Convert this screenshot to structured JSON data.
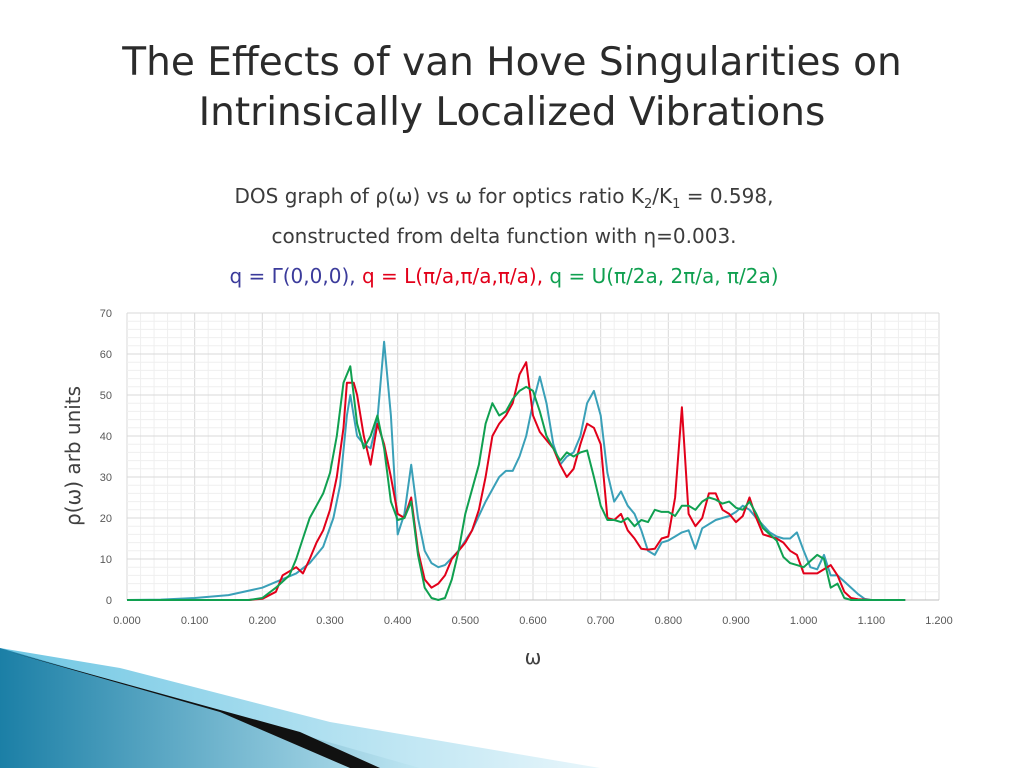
{
  "slide": {
    "title_line1": "The Effects of van Hove Singularities on",
    "title_line2": "Intrinsically Localized Vibrations",
    "sub1_a": "DOS graph of ρ(ω) vs ω for optics ratio K",
    "sub1_s1": "2",
    "sub1_b": "/K",
    "sub1_s2": "1",
    "sub1_c": " = 0.598,",
    "sub2": "constructed from delta function with η=0.003.",
    "q_gamma": "q = Γ(0,0,0),",
    "q_L": "q = L(π/a,π/a,π/a),",
    "q_U": "q = U(π/2a, 2π/a, π/2a)"
  },
  "colors": {
    "gamma": "#3b3b9b",
    "L": "#e2001a",
    "U": "#10a050",
    "teal": "#3aa0b8",
    "grid": "#e6e6e6",
    "axis_text": "#595959"
  },
  "chart_data": {
    "type": "line",
    "xlabel": "ω",
    "ylabel": "ρ(ω) arb units",
    "xlim": [
      0,
      1.2
    ],
    "ylim": [
      0,
      70
    ],
    "x_ticks": [
      "0.000",
      "0.100",
      "0.200",
      "0.300",
      "0.400",
      "0.500",
      "0.600",
      "0.700",
      "0.800",
      "0.900",
      "1.000",
      "1.100",
      "1.200"
    ],
    "y_ticks": [
      "0",
      "10",
      "20",
      "30",
      "40",
      "50",
      "60",
      "70"
    ],
    "grid": true,
    "legend": "none",
    "series": [
      {
        "color": "#3aa0b8",
        "points": [
          [
            0,
            0
          ],
          [
            0.05,
            0.1
          ],
          [
            0.1,
            0.5
          ],
          [
            0.15,
            1.2
          ],
          [
            0.2,
            3
          ],
          [
            0.25,
            6.5
          ],
          [
            0.27,
            9
          ],
          [
            0.29,
            13
          ],
          [
            0.305,
            20
          ],
          [
            0.315,
            28
          ],
          [
            0.325,
            45
          ],
          [
            0.33,
            50
          ],
          [
            0.34,
            40
          ],
          [
            0.35,
            38
          ],
          [
            0.36,
            37
          ],
          [
            0.37,
            44
          ],
          [
            0.38,
            63
          ],
          [
            0.39,
            45
          ],
          [
            0.4,
            16
          ],
          [
            0.41,
            21
          ],
          [
            0.42,
            33
          ],
          [
            0.43,
            20
          ],
          [
            0.44,
            12
          ],
          [
            0.45,
            9
          ],
          [
            0.46,
            8
          ],
          [
            0.47,
            8.5
          ],
          [
            0.49,
            12
          ],
          [
            0.51,
            17
          ],
          [
            0.53,
            24
          ],
          [
            0.55,
            30
          ],
          [
            0.56,
            31.5
          ],
          [
            0.57,
            31.5
          ],
          [
            0.58,
            35
          ],
          [
            0.59,
            40
          ],
          [
            0.6,
            48
          ],
          [
            0.61,
            54.5
          ],
          [
            0.62,
            48
          ],
          [
            0.63,
            38
          ],
          [
            0.64,
            33
          ],
          [
            0.65,
            35
          ],
          [
            0.66,
            36
          ],
          [
            0.67,
            40
          ],
          [
            0.68,
            48
          ],
          [
            0.69,
            51
          ],
          [
            0.7,
            45
          ],
          [
            0.71,
            31
          ],
          [
            0.72,
            24
          ],
          [
            0.73,
            26.5
          ],
          [
            0.74,
            23
          ],
          [
            0.75,
            21
          ],
          [
            0.76,
            17
          ],
          [
            0.77,
            12
          ],
          [
            0.78,
            11
          ],
          [
            0.79,
            14
          ],
          [
            0.8,
            14.5
          ],
          [
            0.81,
            15.5
          ],
          [
            0.82,
            16.5
          ],
          [
            0.83,
            17
          ],
          [
            0.84,
            12.5
          ],
          [
            0.85,
            17.5
          ],
          [
            0.87,
            19.5
          ],
          [
            0.89,
            20.5
          ],
          [
            0.9,
            21.5
          ],
          [
            0.91,
            23
          ],
          [
            0.92,
            22
          ],
          [
            0.93,
            20
          ],
          [
            0.95,
            16.5
          ],
          [
            0.96,
            15.5
          ],
          [
            0.97,
            15
          ],
          [
            0.98,
            15
          ],
          [
            0.99,
            16.5
          ],
          [
            1.0,
            12
          ],
          [
            1.01,
            8
          ],
          [
            1.02,
            7.5
          ],
          [
            1.03,
            11
          ],
          [
            1.04,
            6
          ],
          [
            1.05,
            6
          ],
          [
            1.06,
            4.5
          ],
          [
            1.08,
            1.5
          ],
          [
            1.09,
            0.3
          ],
          [
            1.1,
            0
          ],
          [
            1.15,
            0
          ]
        ]
      },
      {
        "color": "#e2001a",
        "points": [
          [
            0,
            0
          ],
          [
            0.18,
            0
          ],
          [
            0.2,
            0.3
          ],
          [
            0.22,
            2
          ],
          [
            0.23,
            6
          ],
          [
            0.24,
            7
          ],
          [
            0.25,
            8
          ],
          [
            0.26,
            6.5
          ],
          [
            0.27,
            10
          ],
          [
            0.28,
            14
          ],
          [
            0.29,
            17
          ],
          [
            0.3,
            22
          ],
          [
            0.31,
            30
          ],
          [
            0.32,
            42
          ],
          [
            0.325,
            53
          ],
          [
            0.33,
            53
          ],
          [
            0.335,
            53
          ],
          [
            0.34,
            50
          ],
          [
            0.35,
            40
          ],
          [
            0.36,
            33
          ],
          [
            0.37,
            43
          ],
          [
            0.38,
            38
          ],
          [
            0.39,
            30
          ],
          [
            0.4,
            21
          ],
          [
            0.41,
            20
          ],
          [
            0.42,
            25
          ],
          [
            0.43,
            12
          ],
          [
            0.44,
            5
          ],
          [
            0.45,
            3
          ],
          [
            0.46,
            4
          ],
          [
            0.47,
            6
          ],
          [
            0.48,
            10
          ],
          [
            0.49,
            12
          ],
          [
            0.5,
            14
          ],
          [
            0.51,
            17
          ],
          [
            0.52,
            22
          ],
          [
            0.53,
            30
          ],
          [
            0.54,
            40
          ],
          [
            0.55,
            43
          ],
          [
            0.56,
            45
          ],
          [
            0.57,
            48
          ],
          [
            0.58,
            55
          ],
          [
            0.59,
            58
          ],
          [
            0.6,
            45
          ],
          [
            0.61,
            41
          ],
          [
            0.62,
            39
          ],
          [
            0.63,
            37
          ],
          [
            0.64,
            33
          ],
          [
            0.65,
            30
          ],
          [
            0.66,
            32
          ],
          [
            0.67,
            38
          ],
          [
            0.68,
            43
          ],
          [
            0.69,
            42
          ],
          [
            0.7,
            38
          ],
          [
            0.71,
            20
          ],
          [
            0.72,
            19.5
          ],
          [
            0.73,
            21
          ],
          [
            0.74,
            17
          ],
          [
            0.75,
            15
          ],
          [
            0.76,
            12.5
          ],
          [
            0.77,
            12.3
          ],
          [
            0.78,
            12.5
          ],
          [
            0.79,
            15
          ],
          [
            0.8,
            15.5
          ],
          [
            0.81,
            25
          ],
          [
            0.82,
            47
          ],
          [
            0.83,
            21
          ],
          [
            0.84,
            18
          ],
          [
            0.85,
            20
          ],
          [
            0.86,
            26
          ],
          [
            0.87,
            26
          ],
          [
            0.88,
            22
          ],
          [
            0.89,
            21
          ],
          [
            0.9,
            19
          ],
          [
            0.91,
            20.5
          ],
          [
            0.92,
            25
          ],
          [
            0.93,
            20
          ],
          [
            0.94,
            16
          ],
          [
            0.95,
            15.5
          ],
          [
            0.96,
            15
          ],
          [
            0.97,
            14
          ],
          [
            0.98,
            12
          ],
          [
            0.99,
            11
          ],
          [
            1.0,
            6.5
          ],
          [
            1.02,
            6.5
          ],
          [
            1.04,
            8.5
          ],
          [
            1.05,
            6
          ],
          [
            1.06,
            2
          ],
          [
            1.07,
            0.5
          ],
          [
            1.08,
            0.2
          ],
          [
            1.1,
            0
          ],
          [
            1.15,
            0
          ]
        ]
      },
      {
        "color": "#10a050",
        "points": [
          [
            0,
            0
          ],
          [
            0.18,
            0
          ],
          [
            0.2,
            0.5
          ],
          [
            0.22,
            3
          ],
          [
            0.24,
            6
          ],
          [
            0.25,
            10
          ],
          [
            0.26,
            15
          ],
          [
            0.27,
            20
          ],
          [
            0.28,
            23
          ],
          [
            0.29,
            26
          ],
          [
            0.3,
            31
          ],
          [
            0.31,
            40
          ],
          [
            0.32,
            53
          ],
          [
            0.33,
            57
          ],
          [
            0.34,
            43
          ],
          [
            0.35,
            37
          ],
          [
            0.36,
            40
          ],
          [
            0.37,
            45
          ],
          [
            0.38,
            37
          ],
          [
            0.39,
            24
          ],
          [
            0.4,
            19.5
          ],
          [
            0.41,
            20
          ],
          [
            0.42,
            24
          ],
          [
            0.43,
            11
          ],
          [
            0.44,
            3
          ],
          [
            0.45,
            0.5
          ],
          [
            0.46,
            0
          ],
          [
            0.47,
            0.5
          ],
          [
            0.48,
            5
          ],
          [
            0.49,
            12
          ],
          [
            0.5,
            21
          ],
          [
            0.51,
            27
          ],
          [
            0.52,
            33
          ],
          [
            0.53,
            43
          ],
          [
            0.54,
            48
          ],
          [
            0.55,
            45
          ],
          [
            0.56,
            46
          ],
          [
            0.57,
            49
          ],
          [
            0.58,
            51
          ],
          [
            0.59,
            52
          ],
          [
            0.6,
            51
          ],
          [
            0.61,
            46
          ],
          [
            0.62,
            40
          ],
          [
            0.63,
            37
          ],
          [
            0.64,
            34
          ],
          [
            0.65,
            36
          ],
          [
            0.66,
            35
          ],
          [
            0.67,
            36
          ],
          [
            0.68,
            36.5
          ],
          [
            0.69,
            30
          ],
          [
            0.7,
            23
          ],
          [
            0.71,
            19.5
          ],
          [
            0.72,
            19.5
          ],
          [
            0.73,
            19
          ],
          [
            0.74,
            20
          ],
          [
            0.75,
            18
          ],
          [
            0.76,
            19.5
          ],
          [
            0.77,
            19
          ],
          [
            0.78,
            22
          ],
          [
            0.79,
            21.5
          ],
          [
            0.8,
            21.5
          ],
          [
            0.81,
            20.5
          ],
          [
            0.82,
            23
          ],
          [
            0.83,
            23
          ],
          [
            0.84,
            22
          ],
          [
            0.85,
            24
          ],
          [
            0.86,
            25
          ],
          [
            0.87,
            24.5
          ],
          [
            0.88,
            23.5
          ],
          [
            0.89,
            24
          ],
          [
            0.9,
            22.5
          ],
          [
            0.91,
            22
          ],
          [
            0.92,
            24
          ],
          [
            0.93,
            21
          ],
          [
            0.94,
            17.5
          ],
          [
            0.95,
            16
          ],
          [
            0.96,
            14.5
          ],
          [
            0.97,
            10.5
          ],
          [
            0.98,
            9
          ],
          [
            0.99,
            8.5
          ],
          [
            1.0,
            8
          ],
          [
            1.01,
            9.5
          ],
          [
            1.02,
            11
          ],
          [
            1.03,
            10
          ],
          [
            1.04,
            3
          ],
          [
            1.05,
            4
          ],
          [
            1.06,
            0.5
          ],
          [
            1.07,
            0
          ],
          [
            1.15,
            0
          ]
        ]
      }
    ]
  }
}
